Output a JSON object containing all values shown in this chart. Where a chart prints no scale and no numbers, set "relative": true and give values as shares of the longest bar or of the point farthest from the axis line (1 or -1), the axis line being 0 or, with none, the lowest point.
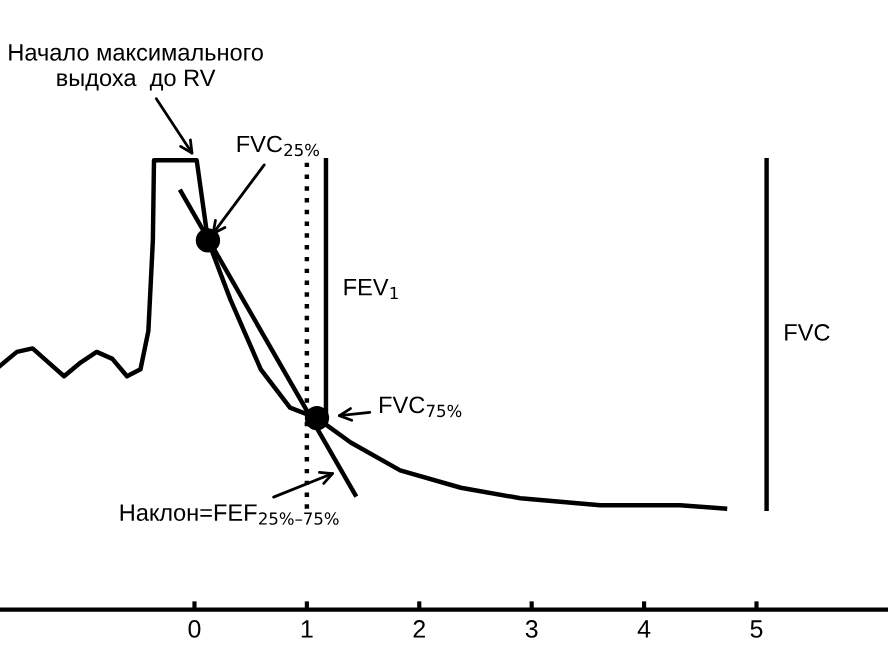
{
  "chart_data": {
    "type": "line",
    "relative": true,
    "xlim": [
      -1.73,
      6.17
    ],
    "xticks": [
      0,
      1,
      2,
      3,
      4,
      5
    ],
    "grid": false,
    "legend": false,
    "ref_lines": [
      {
        "axis": "x",
        "value": 1,
        "color": "#000000",
        "line_style": "dotted"
      }
    ],
    "series": [
      {
        "color": "#000000",
        "x": [
          -1.73,
          -1.58,
          -1.44,
          -1.3,
          -1.16,
          -1.01,
          -0.87,
          -0.73,
          -0.6,
          -0.48,
          -0.41,
          -0.37,
          -0.36,
          0.02,
          0.12,
          0.32,
          0.59,
          0.85,
          1.09,
          1.39,
          1.83,
          2.37,
          2.9,
          3.61,
          4.32,
          4.72
        ],
        "values": [
          0.41,
          0.45,
          0.46,
          0.42,
          0.38,
          0.42,
          0.45,
          0.43,
          0.38,
          0.4,
          0.51,
          0.77,
          1.0,
          1.0,
          0.77,
          0.6,
          0.4,
          0.29,
          0.26,
          0.19,
          0.11,
          0.06,
          0.03,
          0.01,
          0.01,
          0.0
        ]
      },
      {
        "color": "#000000",
        "x": [
          -0.12,
          1.43
        ],
        "values": [
          0.91,
          0.04
        ]
      },
      {
        "color": "#000000",
        "x": [
          1.17,
          1.17
        ],
        "values": [
          1.0,
          0.27
        ]
      },
      {
        "color": "#000000",
        "x": [
          5.09,
          5.09
        ],
        "values": [
          1.0,
          0.0
        ]
      },
      {
        "type": "scatter",
        "color": "#000000",
        "marker": "circle",
        "x": [
          0.12,
          1.09
        ],
        "values": [
          0.77,
          0.26
        ]
      }
    ],
    "annotations": [
      {
        "text": "Начало максимального\nвыдоха  до RV",
        "x": 0.02,
        "y": 1.0
      },
      {
        "text": "FVC$_{25%}$",
        "x": 0.12,
        "y": 0.77
      },
      {
        "text": "FEV$_{1}$",
        "x": 1.17,
        "y": 0.63
      },
      {
        "text": "FVC",
        "x": 5.09,
        "y": 0.5
      },
      {
        "text": "FVC$_{75%}$",
        "x": 1.09,
        "y": 0.26
      },
      {
        "text": "Наклон=FEF$_{25%–75%}$",
        "x": 1.3,
        "y": 0.11
      }
    ]
  }
}
